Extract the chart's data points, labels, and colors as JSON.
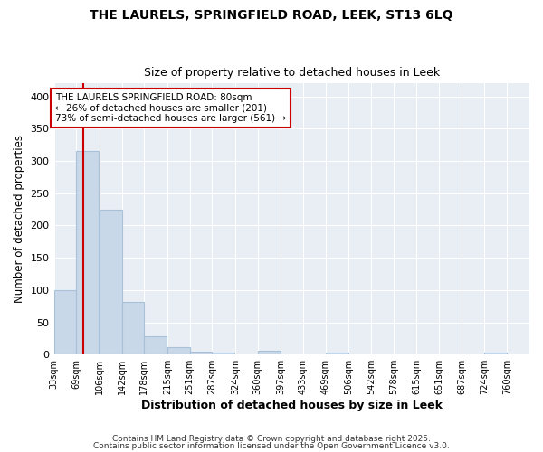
{
  "title1": "THE LAURELS, SPRINGFIELD ROAD, LEEK, ST13 6LQ",
  "title2": "Size of property relative to detached houses in Leek",
  "xlabel": "Distribution of detached houses by size in Leek",
  "ylabel": "Number of detached properties",
  "bin_labels": [
    "33sqm",
    "69sqm",
    "106sqm",
    "142sqm",
    "178sqm",
    "215sqm",
    "251sqm",
    "287sqm",
    "324sqm",
    "360sqm",
    "397sqm",
    "433sqm",
    "469sqm",
    "506sqm",
    "542sqm",
    "578sqm",
    "615sqm",
    "651sqm",
    "687sqm",
    "724sqm",
    "760sqm"
  ],
  "bin_edges": [
    33,
    69,
    106,
    142,
    178,
    215,
    251,
    287,
    324,
    360,
    397,
    433,
    469,
    506,
    542,
    578,
    615,
    651,
    687,
    724,
    760
  ],
  "bar_heights": [
    100,
    315,
    225,
    82,
    28,
    12,
    5,
    3,
    0,
    6,
    0,
    0,
    3,
    0,
    0,
    0,
    0,
    0,
    0,
    3
  ],
  "bar_color": "#c8d8e8",
  "bar_edgecolor": "#a8c0d8",
  "property_size": 80,
  "red_line_color": "#cc0000",
  "annotation_text": "THE LAURELS SPRINGFIELD ROAD: 80sqm\n← 26% of detached houses are smaller (201)\n73% of semi-detached houses are larger (561) →",
  "annotation_box_facecolor": "#ffffff",
  "annotation_border_color": "#cc0000",
  "ylim": [
    0,
    420
  ],
  "yticks": [
    0,
    50,
    100,
    150,
    200,
    250,
    300,
    350,
    400
  ],
  "footer1": "Contains HM Land Registry data © Crown copyright and database right 2025.",
  "footer2": "Contains public sector information licensed under the Open Government Licence v3.0.",
  "fig_bg_color": "#ffffff",
  "plot_bg_color": "#e8eef4",
  "grid_color": "#ffffff"
}
